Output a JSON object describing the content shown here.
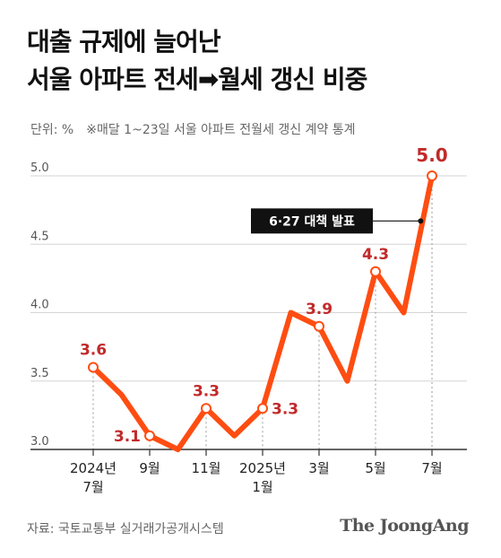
{
  "title_line1": "대출 규제에 늘어난",
  "title_line2": "서울 아파트 전세➡월세 갱신 비중",
  "unit_label": "단위: %",
  "note": "※매달 1~23일 서울 아파트 전월세 갱신 계약 통계",
  "source": "자료: 국토교통부 실거래가공개시스템",
  "brand": "The JoongAng",
  "colors": {
    "line": "#ff4d12",
    "label": "#c22a2a",
    "grid": "#d6d6d6",
    "axis": "#333333"
  },
  "chart_data": {
    "type": "line",
    "x": [
      "2024-07",
      "2024-08",
      "2024-09",
      "2024-10",
      "2024-11",
      "2024-12",
      "2025-01",
      "2025-02",
      "2025-03",
      "2025-04",
      "2025-05",
      "2025-06",
      "2025-07"
    ],
    "series": [
      {
        "values": [
          3.6,
          3.4,
          3.1,
          3.0,
          3.3,
          3.1,
          3.3,
          4.0,
          3.9,
          3.5,
          4.3,
          4.0,
          5.0
        ]
      }
    ],
    "yticks": [
      "3.0",
      "3.5",
      "4.0",
      "4.5",
      "5.0"
    ],
    "ylim": [
      3.0,
      5.0
    ],
    "xtick_labels": [
      {
        "index": 0,
        "lines": [
          "2024년",
          "7월"
        ]
      },
      {
        "index": 2,
        "lines": [
          "9월"
        ]
      },
      {
        "index": 4,
        "lines": [
          "11월"
        ]
      },
      {
        "index": 6,
        "lines": [
          "2025년",
          "1월"
        ]
      },
      {
        "index": 8,
        "lines": [
          "3월"
        ]
      },
      {
        "index": 10,
        "lines": [
          "5월"
        ]
      },
      {
        "index": 12,
        "lines": [
          "7월"
        ]
      }
    ],
    "data_labels": [
      {
        "index": 0,
        "text": "3.6",
        "pos": "above"
      },
      {
        "index": 2,
        "text": "3.1",
        "pos": "left"
      },
      {
        "index": 4,
        "text": "3.3",
        "pos": "above"
      },
      {
        "index": 6,
        "text": "3.3",
        "pos": "right"
      },
      {
        "index": 8,
        "text": "3.9",
        "pos": "above"
      },
      {
        "index": 10,
        "text": "4.3",
        "pos": "above"
      },
      {
        "index": 12,
        "text": "5.0",
        "pos": "above"
      }
    ],
    "annotation": {
      "text": "6·27 대책 발표",
      "x_index": 11.6,
      "y": 4.67
    },
    "grid": true
  }
}
